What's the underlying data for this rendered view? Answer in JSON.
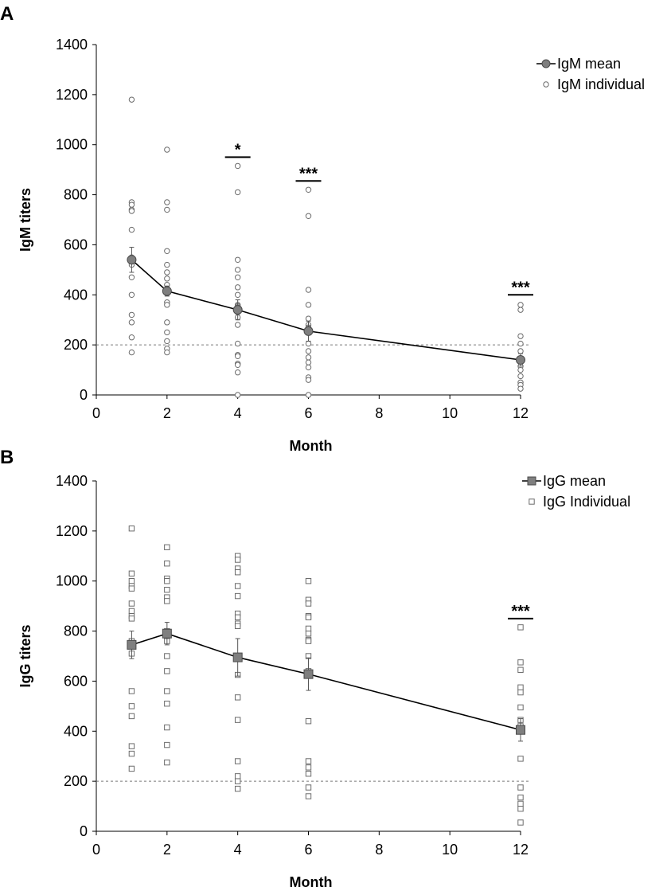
{
  "chart_data": [
    {
      "panel": "A",
      "type": "scatter",
      "xlabel": "Month",
      "ylabel": "IgM titers",
      "xlim": [
        0,
        12
      ],
      "ylim": [
        0,
        1400
      ],
      "xticks": [
        0,
        2,
        4,
        6,
        8,
        10,
        12
      ],
      "yticks": [
        0,
        200,
        400,
        600,
        800,
        1000,
        1200,
        1400
      ],
      "threshold": 200,
      "marker": "circle",
      "series": [
        {
          "name": "IgM mean",
          "x": [
            1,
            2,
            4,
            6,
            12
          ],
          "y": [
            540,
            415,
            340,
            255,
            140
          ],
          "error": [
            50,
            20,
            40,
            40,
            25
          ]
        },
        {
          "name": "IgM individual",
          "points": [
            {
              "x": 1,
              "values": [
                1180,
                770,
                760,
                740,
                735,
                660,
                550,
                545,
                540,
                530,
                520,
                470,
                400,
                320,
                290,
                230,
                170
              ]
            },
            {
              "x": 2,
              "values": [
                980,
                770,
                740,
                575,
                520,
                490,
                465,
                440,
                425,
                420,
                410,
                370,
                360,
                290,
                250,
                215,
                185,
                170
              ]
            },
            {
              "x": 4,
              "values": [
                915,
                810,
                540,
                500,
                470,
                430,
                400,
                360,
                355,
                350,
                345,
                340,
                330,
                310,
                280,
                205,
                160,
                155,
                125,
                120,
                90,
                0
              ]
            },
            {
              "x": 6,
              "values": [
                820,
                715,
                420,
                360,
                305,
                280,
                270,
                265,
                255,
                250,
                205,
                175,
                150,
                130,
                110,
                70,
                60,
                0
              ]
            },
            {
              "x": 12,
              "values": [
                360,
                340,
                235,
                205,
                175,
                145,
                140,
                130,
                115,
                100,
                75,
                50,
                40,
                25
              ]
            }
          ]
        }
      ],
      "annotations": [
        {
          "x": 4,
          "label": "*",
          "bar_y": 950
        },
        {
          "x": 6,
          "label": "***",
          "bar_y": 855
        },
        {
          "x": 12,
          "label": "***",
          "bar_y": 400
        }
      ],
      "legend": "top-right"
    },
    {
      "panel": "B",
      "type": "scatter",
      "xlabel": "Month",
      "ylabel": "IgG titers",
      "xlim": [
        0,
        12
      ],
      "ylim": [
        0,
        1400
      ],
      "xticks": [
        0,
        2,
        4,
        6,
        8,
        10,
        12
      ],
      "yticks": [
        0,
        200,
        400,
        600,
        800,
        1000,
        1200,
        1400
      ],
      "threshold": 200,
      "marker": "square",
      "series": [
        {
          "name": "IgG mean",
          "x": [
            1,
            2,
            4,
            6,
            12
          ],
          "y": [
            745,
            790,
            695,
            628,
            405
          ],
          "error": [
            55,
            45,
            75,
            65,
            45
          ]
        },
        {
          "name": "IgG Individual",
          "points": [
            {
              "x": 1,
              "values": [
                1210,
                1030,
                1000,
                980,
                970,
                910,
                880,
                860,
                850,
                760,
                750,
                710,
                560,
                500,
                460,
                340,
                310,
                250
              ]
            },
            {
              "x": 2,
              "values": [
                1135,
                1070,
                1010,
                1000,
                965,
                935,
                920,
                800,
                790,
                780,
                760,
                700,
                640,
                560,
                510,
                415,
                345,
                275
              ]
            },
            {
              "x": 4,
              "values": [
                1100,
                1085,
                1050,
                1035,
                980,
                940,
                870,
                855,
                830,
                820,
                625,
                535,
                445,
                280,
                220,
                200,
                170
              ]
            },
            {
              "x": 6,
              "values": [
                1000,
                925,
                910,
                860,
                855,
                810,
                790,
                765,
                760,
                700,
                640,
                630,
                440,
                280,
                255,
                230,
                175,
                140
              ]
            },
            {
              "x": 12,
              "values": [
                815,
                675,
                645,
                575,
                555,
                495,
                445,
                420,
                400,
                290,
                175,
                135,
                110,
                90,
                35
              ]
            }
          ]
        }
      ],
      "annotations": [
        {
          "x": 12,
          "label": "***",
          "bar_y": 850
        }
      ],
      "legend": "top-right"
    }
  ]
}
